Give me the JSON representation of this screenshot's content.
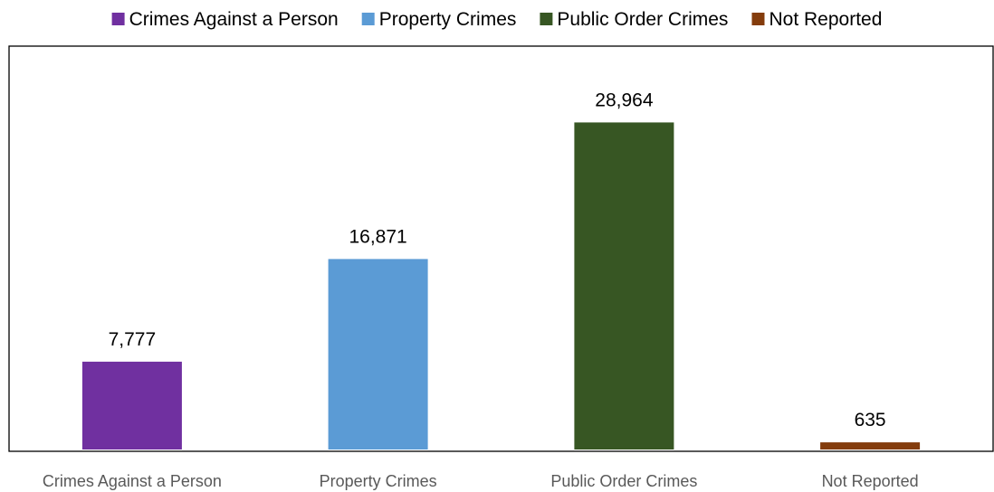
{
  "chart_data": {
    "type": "bar",
    "categories": [
      "Crimes Against a Person",
      "Property Crimes",
      "Public Order Crimes",
      "Not Reported"
    ],
    "values": [
      7777,
      16871,
      28964,
      635
    ],
    "value_labels": [
      "7,777",
      "16,871",
      "28,964",
      "635"
    ],
    "colors": [
      "#7030a0",
      "#5b9bd5",
      "#375623",
      "#843c0c"
    ],
    "legend": {
      "placement": "top",
      "entries": [
        {
          "label": "Crimes Against a Person",
          "color": "#7030a0"
        },
        {
          "label": "Property Crimes",
          "color": "#5b9bd5"
        },
        {
          "label": "Public Order Crimes",
          "color": "#375623"
        },
        {
          "label": "Not Reported",
          "color": "#843c0c"
        }
      ]
    },
    "title": "",
    "xlabel": "",
    "ylabel": "",
    "ylim": [
      0,
      35000
    ],
    "grid": false
  }
}
